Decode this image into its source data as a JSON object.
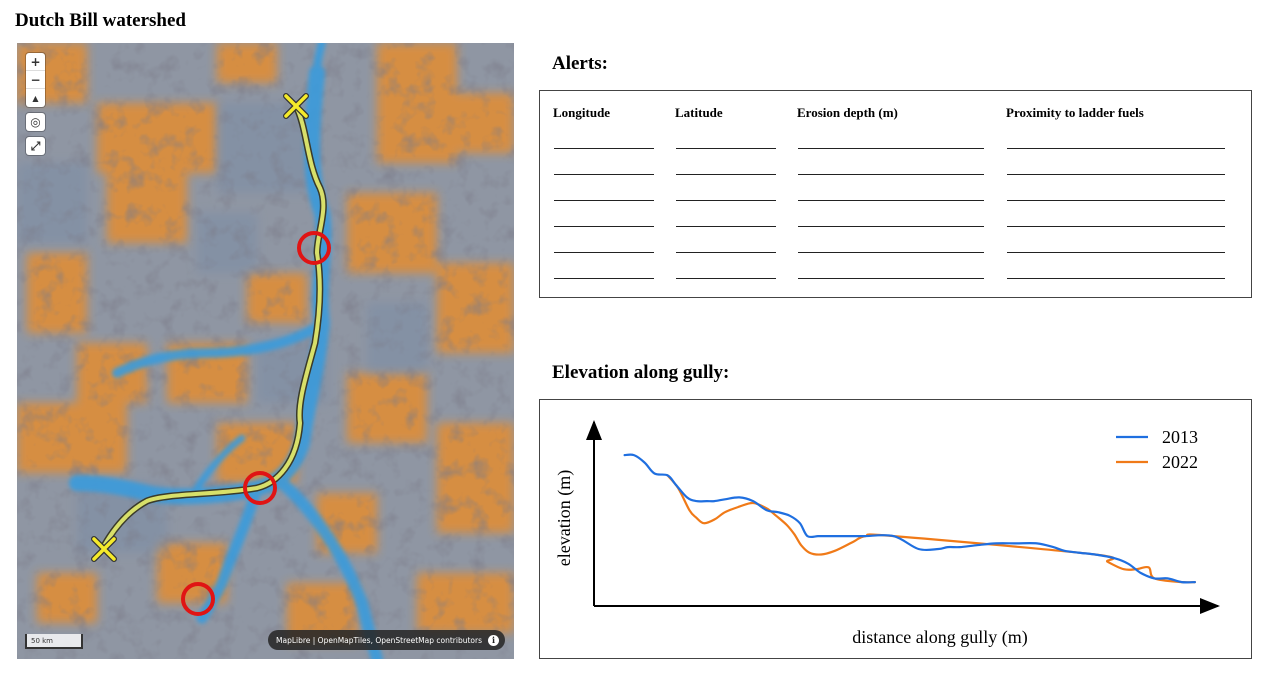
{
  "page": {
    "title": "Dutch Bill watershed"
  },
  "map": {
    "controls": {
      "zoom_in": "+",
      "zoom_out": "−",
      "compass": "▲",
      "locate": "◎",
      "fullscreen": "⤢"
    },
    "scale_label": "50 km",
    "attribution": "MapLibre | OpenMapTiles, OpenStreetMap contributors",
    "info_label": "i",
    "colors": {
      "channel": "#3f9ad9",
      "gully_path": "#d8e06a",
      "marker_x": "#f5ea2a",
      "alert_circle": "#e01414",
      "terrain_base": "#8c93a0",
      "terrain_orange": "#e5913a"
    },
    "icons": [
      "zoom-in-icon",
      "zoom-out-icon",
      "compass-icon",
      "locate-icon",
      "fullscreen-icon",
      "info-icon",
      "x-marker-icon",
      "alert-circle-icon"
    ]
  },
  "alerts": {
    "heading": "Alerts:",
    "columns": [
      "Longitude",
      "Latitude",
      "Erosion depth (m)",
      "Proximity to ladder fuels"
    ],
    "row_count": 6,
    "rows": [
      [
        "",
        "",
        "",
        ""
      ],
      [
        "",
        "",
        "",
        ""
      ],
      [
        "",
        "",
        "",
        ""
      ],
      [
        "",
        "",
        "",
        ""
      ],
      [
        "",
        "",
        "",
        ""
      ],
      [
        "",
        "",
        "",
        ""
      ]
    ]
  },
  "elevation": {
    "heading": "Elevation along gully:"
  },
  "chart_data": {
    "type": "line",
    "title": "",
    "xlabel": "distance along gully (m)",
    "ylabel": "elevation (m)",
    "x_ticks": false,
    "y_ticks": false,
    "grid": false,
    "legend_position": "top-right",
    "xlim": [
      0,
      100
    ],
    "ylim": [
      0,
      100
    ],
    "series": [
      {
        "name": "2013",
        "color": "#1f6fe0",
        "x": [
          4.9,
          6.4,
          8.1,
          9.7,
          11.8,
          13.1,
          14.9,
          16.4,
          18.1,
          19.3,
          21.0,
          23.3,
          25.5,
          27.7,
          29.5,
          31.4,
          33.0,
          34.2,
          35.9,
          37.1,
          40.2,
          43.2,
          48.0,
          52.0,
          55.2,
          56.7,
          58.6,
          61.2,
          64.4,
          67.6,
          71.0,
          73.6,
          75.4,
          77.6,
          80.3,
          83.4,
          85.6,
          87.6,
          89.8,
          91.9,
          94.2,
          96.3
        ],
        "y": [
          82,
          82,
          78,
          72,
          71,
          66,
          59,
          57,
          57,
          57,
          58,
          59,
          57,
          52,
          51,
          49,
          45,
          38,
          38,
          38,
          38,
          38,
          38,
          31,
          31,
          32,
          32,
          33,
          34,
          34,
          34,
          32,
          30,
          29,
          28,
          26,
          23,
          18,
          15,
          15,
          13,
          13
        ]
      },
      {
        "name": "2022",
        "color": "#f07a18",
        "x": [
          11.8,
          13.5,
          15.3,
          16.4,
          17.6,
          19.3,
          21.0,
          23.3,
          25.5,
          27.7,
          29.2,
          30.9,
          32.1,
          33.2,
          34.5,
          36.4,
          38.6,
          41.6,
          43.5,
          48.0,
          80.3,
          82.3,
          84.9,
          86.9,
          88.9,
          89.8,
          94.2,
          96.3
        ],
        "y": [
          71,
          64,
          52,
          48,
          45,
          47,
          51,
          54,
          56,
          53,
          49,
          44,
          39,
          33,
          29,
          28,
          30,
          35,
          38,
          38,
          28,
          24,
          20,
          20,
          21,
          15,
          13,
          13
        ]
      }
    ]
  }
}
